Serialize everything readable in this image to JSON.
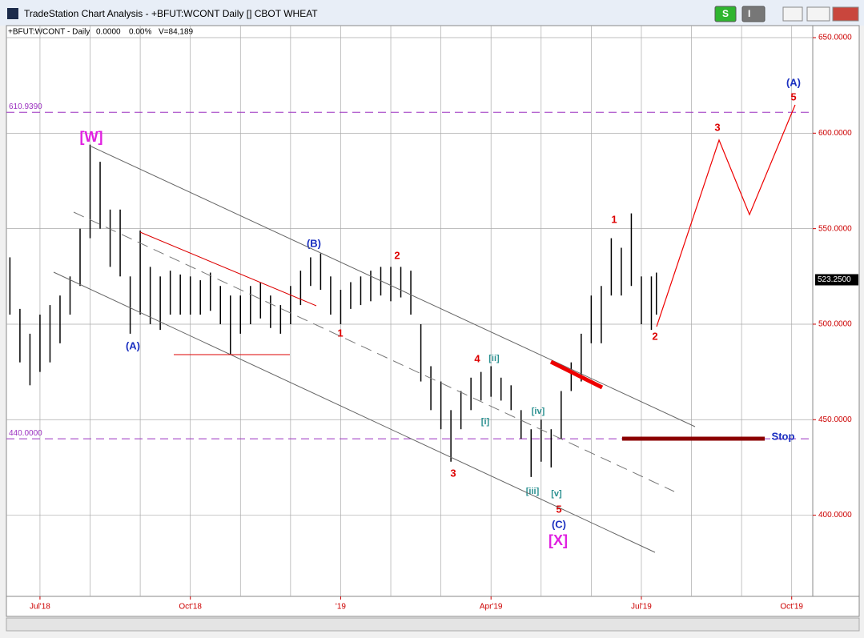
{
  "window": {
    "title": "TradeStation Chart Analysis - +BFUT:WCONT Daily [] CBOT WHEAT",
    "buttons": [
      "S",
      "I"
    ]
  },
  "info": {
    "symbol": "+BFUT:WCONT - Daily",
    "change": "0.0000",
    "percent": "0.00%",
    "volume": "V=84,189"
  },
  "chart_data": {
    "type": "range",
    "color": "#000000",
    "x": [
      -0.6,
      -0.4,
      -0.2,
      0,
      0.2,
      0.4,
      0.6,
      0.8,
      1.0,
      1.2,
      1.4,
      1.6,
      1.8,
      2.0,
      2.2,
      2.4,
      2.6,
      2.8,
      3.0,
      3.2,
      3.4,
      3.6,
      3.8,
      4.0,
      4.2,
      4.4,
      4.6,
      4.8,
      5.0,
      5.2,
      5.4,
      5.6,
      5.8,
      6.0,
      6.2,
      6.4,
      6.6,
      6.8,
      7.0,
      7.2,
      7.4,
      7.6,
      7.8,
      8.0,
      8.2,
      8.4,
      8.6,
      8.8,
      9.0,
      9.2,
      9.4,
      9.6,
      9.8,
      10.0,
      10.2,
      10.4,
      10.6,
      10.8,
      11.0,
      11.2,
      11.4,
      11.6,
      11.8,
      12.0,
      12.2,
      12.3
    ],
    "highs": [
      535,
      508,
      495,
      505,
      510,
      515,
      525,
      550,
      594,
      585,
      560,
      560,
      525,
      549,
      530,
      525,
      528,
      526,
      525,
      523,
      527,
      520,
      515,
      515,
      520,
      522,
      515,
      510,
      520,
      528,
      535,
      537,
      525,
      518,
      522,
      525,
      528,
      530,
      530,
      530,
      528,
      500,
      478,
      470,
      455,
      465,
      472,
      475,
      478,
      472,
      468,
      455,
      445,
      450,
      445,
      465,
      480,
      495,
      515,
      520,
      545,
      540,
      558,
      525,
      525,
      527
    ],
    "lows": [
      505,
      480,
      468,
      475,
      480,
      490,
      505,
      520,
      545,
      550,
      530,
      525,
      495,
      505,
      500,
      497,
      505,
      505,
      505,
      505,
      507,
      500,
      484,
      495,
      500,
      503,
      498,
      495,
      500,
      510,
      520,
      518,
      505,
      500,
      508,
      510,
      512,
      515,
      512,
      514,
      505,
      470,
      455,
      445,
      428,
      445,
      455,
      460,
      462,
      460,
      455,
      440,
      420,
      428,
      425,
      440,
      465,
      470,
      490,
      490,
      515,
      515,
      520,
      500,
      497,
      505
    ],
    "xlim": [
      -0.67,
      15.42
    ],
    "xticks": [
      {
        "value": 0,
        "label": "Jul'18"
      },
      {
        "value": 3,
        "label": "Oct'18"
      },
      {
        "value": 6,
        "label": "'19"
      },
      {
        "value": 9,
        "label": "Apr'19"
      },
      {
        "value": 12,
        "label": "Jul'19"
      },
      {
        "value": 15,
        "label": "Oct'19"
      }
    ],
    "ylim": [
      357.5,
      656.3
    ],
    "yticks": [
      {
        "value": 400,
        "label": "400.0000"
      },
      {
        "value": 450,
        "label": "450.0000"
      },
      {
        "value": 500,
        "label": "500.0000"
      },
      {
        "value": 550,
        "label": "550.0000"
      },
      {
        "value": 600,
        "label": "600.0000"
      },
      {
        "value": 650,
        "label": "650.0000"
      }
    ],
    "levels": [
      {
        "value": 610.939,
        "label": "610.9390"
      },
      {
        "value": 440,
        "label": "440.0000"
      }
    ],
    "last_price": {
      "value": 523.25,
      "label": "523.2500"
    },
    "grid": true,
    "annotations": [
      "[W]",
      "(A)",
      "(B)",
      "1",
      "2",
      "3",
      "4",
      "[ii]",
      "[i]",
      "[iv]",
      "[iii]",
      "[v]",
      "5",
      "(C)",
      "[X]",
      "1",
      "2",
      "3",
      "5",
      "(A)",
      "Stop"
    ]
  }
}
